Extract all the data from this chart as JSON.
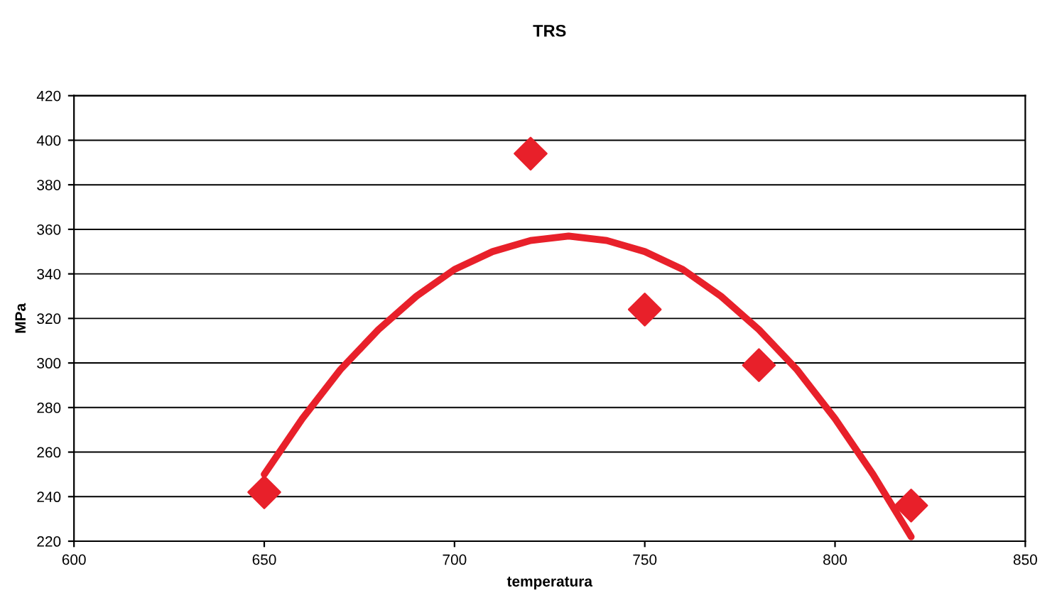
{
  "chart_data": {
    "type": "scatter",
    "title": "TRS",
    "xlabel": "temperatura",
    "ylabel": "MPa",
    "xlim": [
      600,
      850
    ],
    "xticks": [
      600,
      650,
      700,
      750,
      800,
      850
    ],
    "ylim": [
      220,
      420
    ],
    "yticks": [
      220,
      240,
      260,
      280,
      300,
      320,
      340,
      360,
      380,
      400,
      420
    ],
    "grid": "y",
    "legend": false,
    "series": [
      {
        "marker": "diamond",
        "color": "#e8202a",
        "x": [
          650,
          720,
          750,
          780,
          820
        ],
        "values": [
          242,
          394,
          324,
          299,
          236
        ]
      },
      {
        "type": "line",
        "marker": "none",
        "line_style": "solid",
        "color": "#e8202a",
        "x": [
          650,
          660,
          670,
          680,
          690,
          700,
          710,
          720,
          730,
          740,
          750,
          760,
          770,
          780,
          790,
          800,
          810,
          820
        ],
        "values": [
          250,
          275,
          297,
          315,
          330,
          342,
          350,
          355,
          357,
          355,
          350,
          342,
          330,
          315,
          297,
          275,
          250,
          222
        ]
      }
    ]
  }
}
